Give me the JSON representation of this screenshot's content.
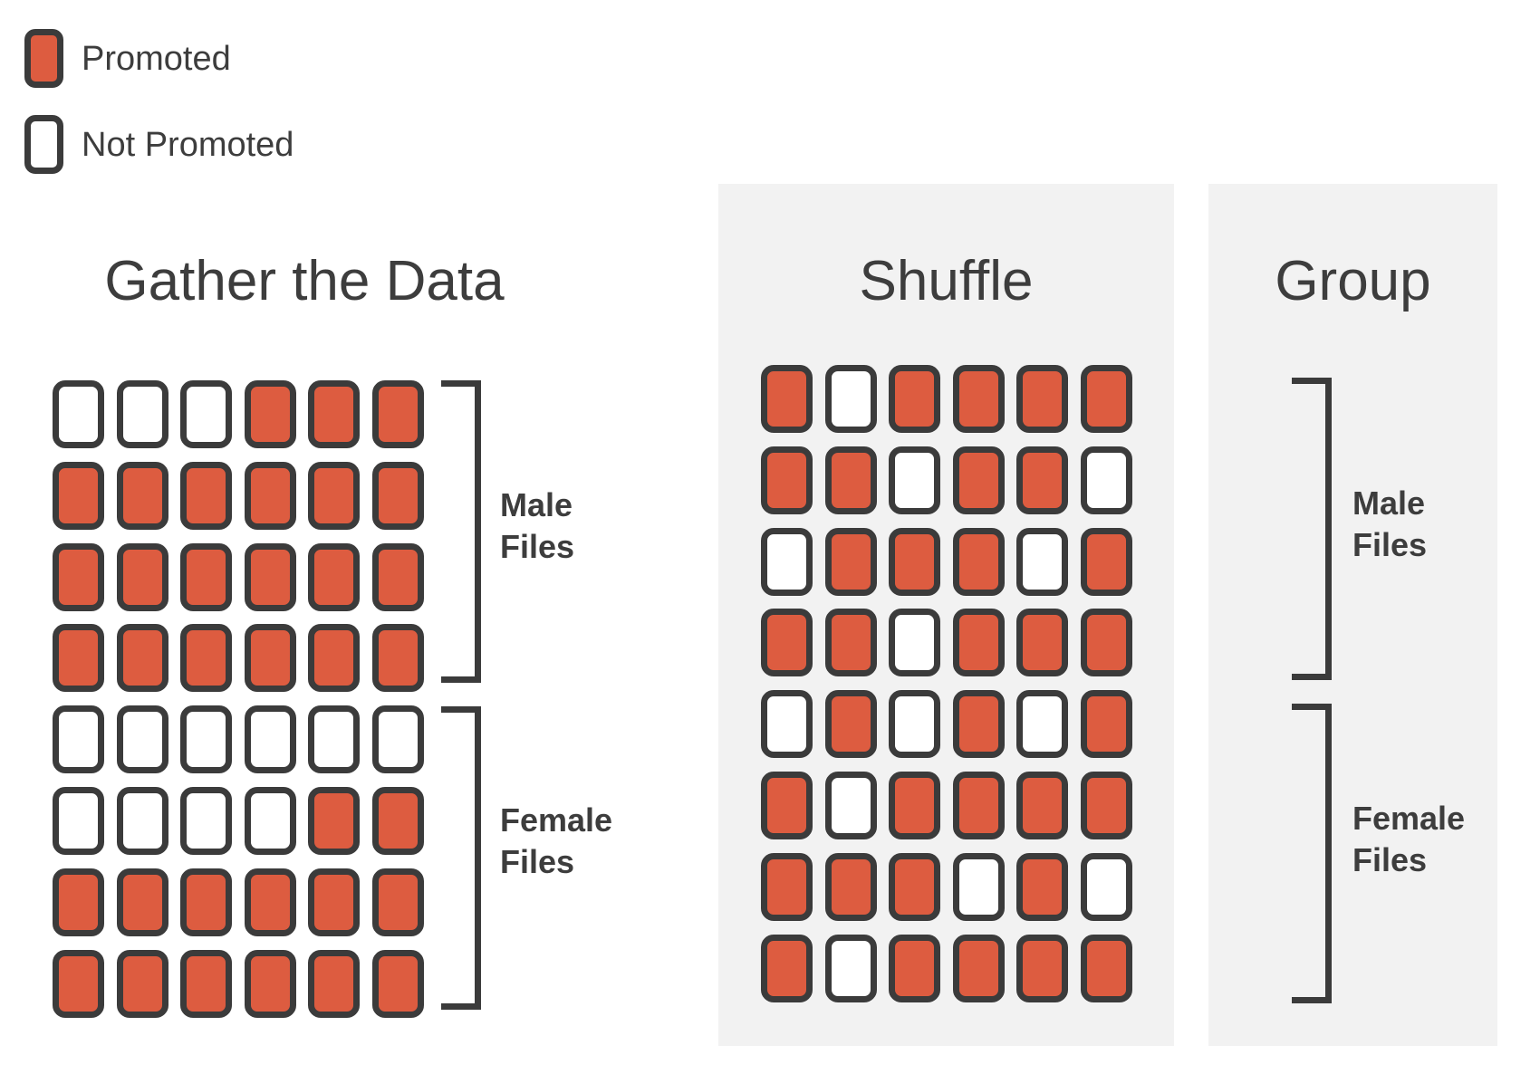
{
  "colors": {
    "promoted_fill": "#dd5c40",
    "not_promoted_fill": "#ffffff",
    "outline": "#3b3b3b",
    "panel_background": "#f2f2f2",
    "text": "#3d3d3d"
  },
  "legend": {
    "items": [
      {
        "label": "Promoted",
        "promoted": true
      },
      {
        "label": "Not Promoted",
        "promoted": false
      }
    ]
  },
  "steps": {
    "gather": {
      "title": "Gather the Data",
      "grid": [
        [
          0,
          0,
          0,
          1,
          1,
          1
        ],
        [
          1,
          1,
          1,
          1,
          1,
          1
        ],
        [
          1,
          1,
          1,
          1,
          1,
          1
        ],
        [
          1,
          1,
          1,
          1,
          1,
          1
        ],
        [
          0,
          0,
          0,
          0,
          0,
          0
        ],
        [
          0,
          0,
          0,
          0,
          1,
          1
        ],
        [
          1,
          1,
          1,
          1,
          1,
          1
        ],
        [
          1,
          1,
          1,
          1,
          1,
          1
        ]
      ],
      "groups": [
        {
          "label": "Male Files"
        },
        {
          "label": "Female Files"
        }
      ]
    },
    "shuffle": {
      "title": "Shuffle",
      "grid": [
        [
          1,
          0,
          1,
          1,
          1,
          1
        ],
        [
          1,
          1,
          0,
          1,
          1,
          0
        ],
        [
          0,
          1,
          1,
          1,
          0,
          1
        ],
        [
          1,
          1,
          0,
          1,
          1,
          1
        ],
        [
          0,
          1,
          0,
          1,
          0,
          1
        ],
        [
          1,
          0,
          1,
          1,
          1,
          1
        ],
        [
          1,
          1,
          1,
          0,
          1,
          0
        ],
        [
          1,
          0,
          1,
          1,
          1,
          1
        ]
      ]
    },
    "group": {
      "title": "Group",
      "groups": [
        {
          "label": "Male Files"
        },
        {
          "label": "Female Files"
        }
      ]
    }
  }
}
